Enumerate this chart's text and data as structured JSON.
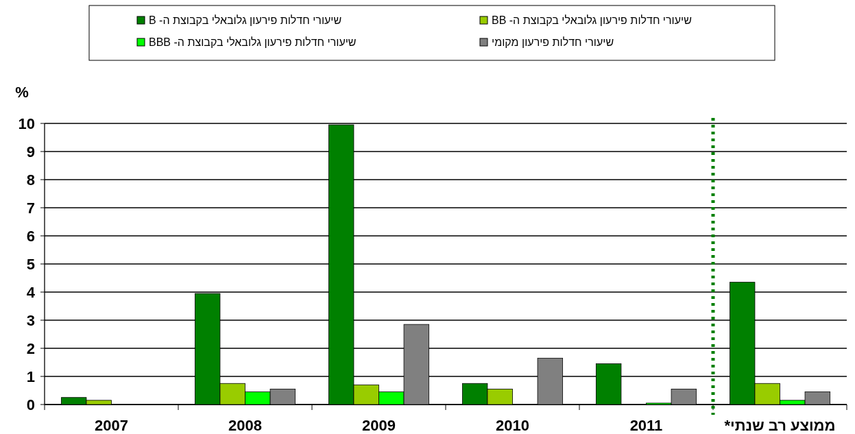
{
  "chart_data": {
    "type": "bar",
    "ylabel": "%",
    "categories": [
      "2007",
      "2008",
      "2009",
      "2010",
      "2011",
      "ממוצע רב שנתי*"
    ],
    "series": [
      {
        "name": "שיעורי חדלות פירעון גלובאלי בקבוצת ה- B",
        "color": "#008000",
        "values": [
          0.25,
          3.95,
          9.95,
          0.75,
          1.45,
          4.35
        ]
      },
      {
        "name": "שיעורי חדלות פירעון גלובאלי בקבוצת ה- BB",
        "color": "#99cc00",
        "values": [
          0.15,
          0.75,
          0.7,
          0.55,
          0,
          0.75
        ]
      },
      {
        "name": "שיעורי חדלות פירעון גלובאלי בקבוצת ה- BBB",
        "color": "#00ff00",
        "values": [
          0,
          0.45,
          0.45,
          0,
          0.05,
          0.15
        ]
      },
      {
        "name": "שיעורי חדלות פירעון מקומי",
        "color": "#808080",
        "values": [
          0,
          0.55,
          2.85,
          1.65,
          0.55,
          0.45
        ]
      }
    ],
    "ylim": [
      0,
      10
    ],
    "yticks": [
      0,
      1,
      2,
      3,
      4,
      5,
      6,
      7,
      8,
      9,
      10
    ],
    "grid": "y",
    "legend": "top",
    "ref_lines": [
      {
        "axis": "x",
        "value": "ממוצע רב שנתי*",
        "color": "#008000",
        "line_style": "dotted"
      }
    ]
  }
}
